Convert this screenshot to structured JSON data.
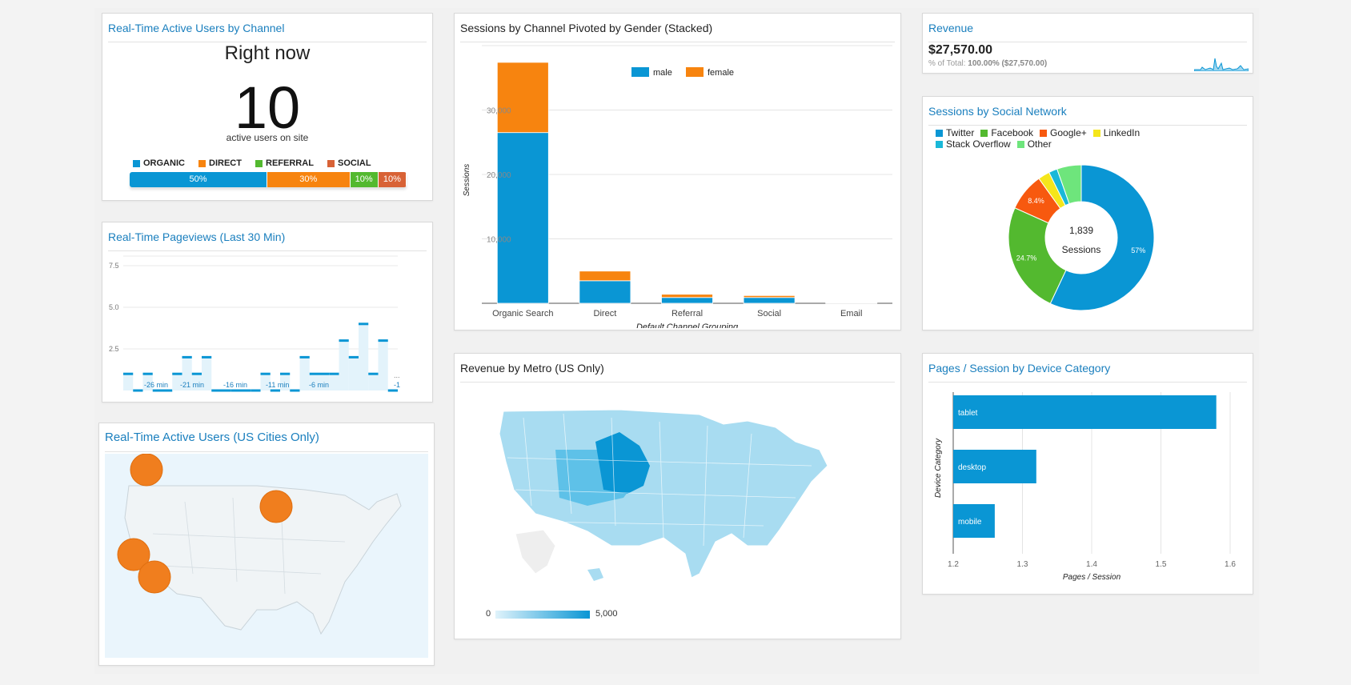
{
  "colors": {
    "blue": "#0a96d4",
    "orange": "#f7840f",
    "green": "#53b92f",
    "rust": "#d86236",
    "title": "#1a7fbe"
  },
  "realtime_channel": {
    "title": "Real-Time Active Users by Channel",
    "headline": "Right now",
    "count": "10",
    "subtitle": "active users on site",
    "legend": [
      {
        "label": "ORGANIC",
        "color": "#0a96d4"
      },
      {
        "label": "DIRECT",
        "color": "#f7840f"
      },
      {
        "label": "REFERRAL",
        "color": "#53b92f"
      },
      {
        "label": "SOCIAL",
        "color": "#d86236"
      }
    ],
    "segments": [
      {
        "label": "50%",
        "share": 0.5,
        "color": "#0a96d4"
      },
      {
        "label": "30%",
        "share": 0.3,
        "color": "#f7840f"
      },
      {
        "label": "10%",
        "share": 0.1,
        "color": "#53b92f"
      },
      {
        "label": "10%",
        "share": 0.1,
        "color": "#d86236"
      }
    ]
  },
  "pageviews": {
    "title": "Real-Time Pageviews (Last 30 Min)",
    "chart_data": {
      "type": "bar",
      "title": "Real-Time Pageviews (Last 30 Min)",
      "y_ticks": [
        "7.5",
        "5.0",
        "2.5"
      ],
      "ylim": [
        0,
        7.5
      ],
      "x_labels": [
        "-26 min",
        "-21 min",
        "-16 min",
        "-11 min",
        "-6 min",
        "-1"
      ],
      "values": [
        1,
        0,
        1,
        0,
        0,
        1,
        2,
        1,
        2,
        0,
        0,
        0,
        0,
        0,
        1,
        0,
        1,
        0,
        2,
        1,
        1,
        1,
        3,
        2,
        4,
        1,
        3,
        0
      ],
      "dots": "..."
    }
  },
  "us_cities": {
    "title": "Real-Time Active Users (US Cities Only)",
    "bubbles": 4
  },
  "sessions_gender": {
    "title": "Sessions by Channel Pivoted by Gender (Stacked)",
    "chart_data": {
      "type": "bar",
      "stacked": true,
      "categories": [
        "Organic Search",
        "Direct",
        "Referral",
        "Social",
        "Email"
      ],
      "series": [
        {
          "name": "male",
          "color": "#0a96d4",
          "values": [
            26500,
            3500,
            900,
            900,
            60
          ]
        },
        {
          "name": "female",
          "color": "#f7840f",
          "values": [
            10900,
            1500,
            500,
            300,
            40
          ]
        }
      ],
      "y_ticks": [
        "30,000",
        "20,000",
        "10,000"
      ],
      "ylim": [
        0,
        40000
      ],
      "ylabel": "Sessions",
      "xlabel": "Default Channel Grouping",
      "legend_position": "top"
    }
  },
  "revenue_metro": {
    "title": "Revenue by Metro (US Only)",
    "scale_min": "0",
    "scale_max": "5,000"
  },
  "revenue": {
    "title": "Revenue",
    "value": "$27,570.00",
    "pct_prefix": "% of Total: ",
    "pct_value": "100.00% ($27,570.00)"
  },
  "social": {
    "title": "Sessions by Social Network",
    "center_value": "1,839",
    "center_label": "Sessions",
    "chart_data": {
      "type": "pie",
      "donut": true,
      "slices": [
        {
          "name": "Twitter",
          "value": 57,
          "label": "57%",
          "color": "#0a96d4"
        },
        {
          "name": "Facebook",
          "value": 24.7,
          "label": "24.7%",
          "color": "#53b92f"
        },
        {
          "name": "Google+",
          "value": 8.4,
          "label": "8.4%",
          "color": "#f7590f"
        },
        {
          "name": "LinkedIn",
          "value": 2.6,
          "label": "",
          "color": "#f5e61b"
        },
        {
          "name": "Stack Overflow",
          "value": 1.9,
          "label": "",
          "color": "#1ab8d8"
        },
        {
          "name": "Other",
          "value": 5.4,
          "label": "",
          "color": "#6ee57c"
        }
      ]
    }
  },
  "pages_device": {
    "title": "Pages / Session by Device Category",
    "chart_data": {
      "type": "bar",
      "orientation": "horizontal",
      "categories": [
        "tablet",
        "desktop",
        "mobile"
      ],
      "values": [
        1.58,
        1.32,
        1.26
      ],
      "xlim": [
        1.2,
        1.6
      ],
      "x_ticks": [
        "1.2",
        "1.3",
        "1.4",
        "1.5",
        "1.6"
      ],
      "xlabel": "Pages / Session",
      "ylabel": "Device Category"
    }
  }
}
